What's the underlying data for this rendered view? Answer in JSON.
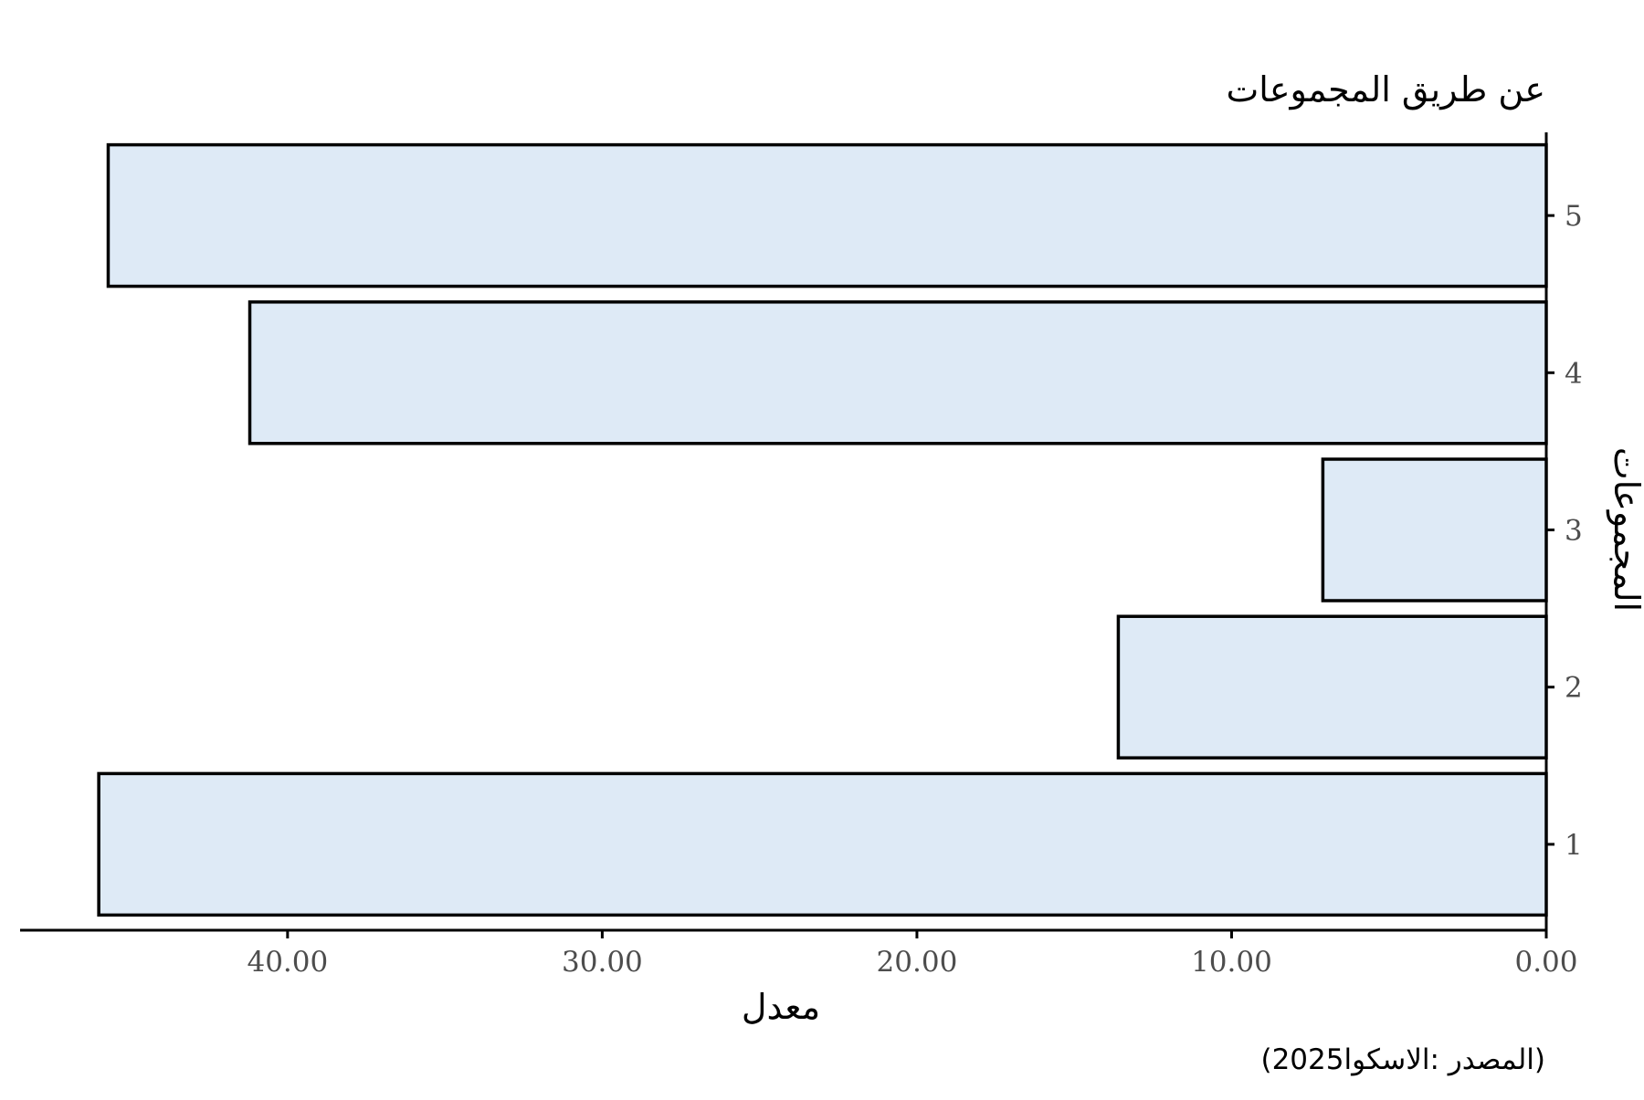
{
  "chart_data": {
    "type": "bar",
    "orientation": "horizontal",
    "title": "عن طريق المجموعات",
    "xlabel": "معدل",
    "ylabel": "المجموعات",
    "caption": "(2025المصدر :الاسكوا)",
    "categories": [
      "1",
      "2",
      "3",
      "4",
      "5"
    ],
    "values": [
      46.0,
      13.6,
      7.1,
      41.2,
      45.7
    ],
    "xlim": [
      0,
      48.5
    ],
    "x_direction": "reversed",
    "x_ticks": [
      0,
      10,
      20,
      30,
      40
    ],
    "x_tick_labels": [
      "0.00",
      "10.00",
      "20.00",
      "30.00",
      "40.00"
    ],
    "grid": false,
    "bar_fill": "#deeaf6",
    "bar_stroke": "#000000"
  }
}
